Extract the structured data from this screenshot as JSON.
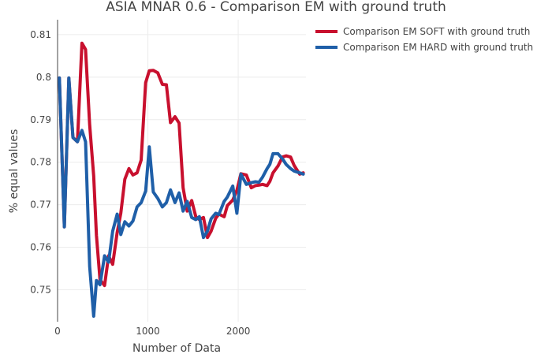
{
  "chart_data": {
    "type": "line",
    "title": "ASIA MNAR 0.6 - Comparison EM with ground truth",
    "xlabel": "Number of Data",
    "ylabel": "% equal values",
    "xlim": [
      0,
      2750
    ],
    "ylim": [
      0.7425,
      0.8135
    ],
    "xticks": [
      0,
      1000,
      2000
    ],
    "yticks": [
      0.75,
      0.76,
      0.77,
      0.78,
      0.79,
      0.8,
      0.81
    ],
    "ytick_labels": [
      "0.75",
      "0.76",
      "0.77",
      "0.78",
      "0.79",
      "0.8",
      "0.81"
    ],
    "grid": true,
    "legend_position": "top-right",
    "series": [
      {
        "name": "Comparison EM SOFT with ground truth",
        "color": "#c8102e",
        "x": [
          20,
          75,
          125,
          170,
          220,
          270,
          310,
          355,
          400,
          430,
          470,
          520,
          565,
          610,
          660,
          700,
          745,
          790,
          835,
          880,
          925,
          975,
          1015,
          1060,
          1110,
          1160,
          1205,
          1250,
          1300,
          1345,
          1390,
          1435,
          1485,
          1530,
          1570,
          1615,
          1660,
          1700,
          1750,
          1785,
          1845,
          1880,
          1940,
          1985,
          2030,
          2090,
          2145,
          2190,
          2230,
          2270,
          2320,
          2350,
          2385,
          2440,
          2490,
          2530,
          2580,
          2620,
          2680,
          2720
        ],
        "y": [
          0.7998,
          0.7648,
          0.7998,
          0.7858,
          0.7848,
          0.808,
          0.8065,
          0.7888,
          0.7768,
          0.7628,
          0.7524,
          0.751,
          0.758,
          0.756,
          0.7635,
          0.768,
          0.776,
          0.7785,
          0.777,
          0.7775,
          0.7805,
          0.7987,
          0.8015,
          0.8016,
          0.801,
          0.7983,
          0.7982,
          0.7893,
          0.7907,
          0.7892,
          0.774,
          0.7685,
          0.771,
          0.7672,
          0.7665,
          0.767,
          0.7623,
          0.7638,
          0.7668,
          0.7678,
          0.7672,
          0.7698,
          0.7711,
          0.7734,
          0.7773,
          0.777,
          0.774,
          0.7745,
          0.7746,
          0.7748,
          0.7745,
          0.7755,
          0.7775,
          0.7791,
          0.7812,
          0.7815,
          0.7812,
          0.7792,
          0.7772,
          0.7775
        ]
      },
      {
        "name": "Comparison EM HARD with ground truth",
        "color": "#1f5fa8",
        "x": [
          20,
          75,
          125,
          170,
          220,
          270,
          310,
          355,
          400,
          430,
          470,
          520,
          565,
          610,
          660,
          700,
          745,
          790,
          835,
          880,
          925,
          975,
          1015,
          1060,
          1110,
          1160,
          1205,
          1250,
          1300,
          1345,
          1390,
          1435,
          1485,
          1530,
          1570,
          1615,
          1660,
          1700,
          1750,
          1785,
          1845,
          1880,
          1940,
          1985,
          2030,
          2090,
          2145,
          2190,
          2230,
          2270,
          2320,
          2350,
          2385,
          2440,
          2490,
          2530,
          2580,
          2620,
          2680,
          2720
        ],
        "y": [
          0.7998,
          0.7648,
          0.7998,
          0.7858,
          0.7848,
          0.7875,
          0.7848,
          0.7555,
          0.7438,
          0.7522,
          0.7512,
          0.758,
          0.7565,
          0.7638,
          0.7678,
          0.763,
          0.766,
          0.765,
          0.7662,
          0.7695,
          0.7705,
          0.7732,
          0.7836,
          0.773,
          0.7715,
          0.7695,
          0.7705,
          0.7735,
          0.7705,
          0.7728,
          0.7685,
          0.7708,
          0.767,
          0.7665,
          0.7672,
          0.7623,
          0.7638,
          0.7667,
          0.768,
          0.7677,
          0.7708,
          0.7718,
          0.7744,
          0.768,
          0.7772,
          0.7748,
          0.7752,
          0.7754,
          0.7753,
          0.7765,
          0.7785,
          0.7795,
          0.782,
          0.782,
          0.7808,
          0.7795,
          0.7785,
          0.7779,
          0.7775,
          0.7772
        ]
      }
    ]
  }
}
